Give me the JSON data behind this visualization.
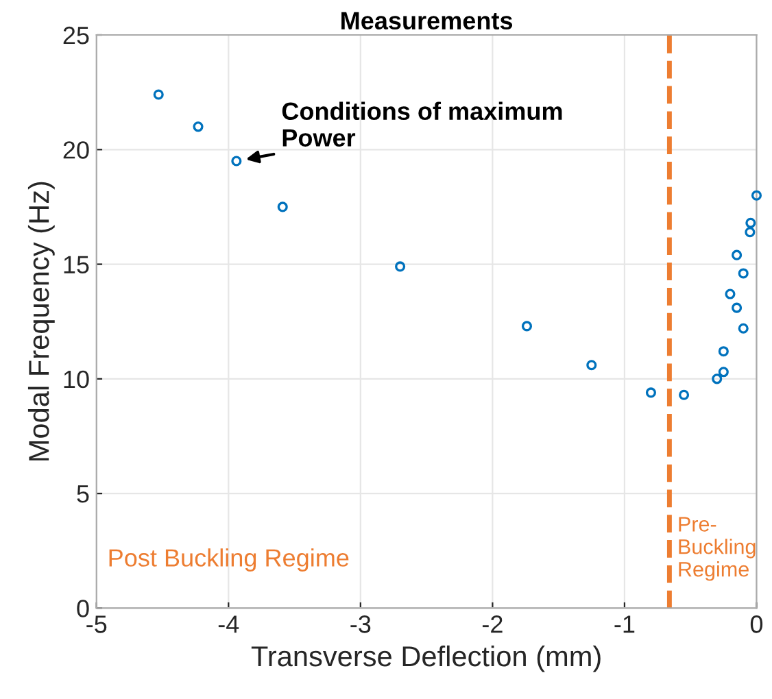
{
  "chart_data": {
    "type": "scatter",
    "title": "Measurements",
    "xlabel": "Transverse Deflection (mm)",
    "ylabel": "Modal Frequency (Hz)",
    "x": [
      -4.53,
      -4.23,
      -3.94,
      -3.59,
      -2.7,
      -1.74,
      -1.25,
      -0.8,
      -0.55,
      -0.3,
      -0.25,
      -0.25,
      -0.1,
      -0.15,
      -0.2,
      -0.1,
      -0.15,
      -0.05,
      -0.045,
      0.0
    ],
    "series": [
      {
        "color": "#0072bd",
        "values": [
          22.4,
          21.0,
          19.5,
          17.5,
          14.9,
          12.3,
          10.6,
          9.4,
          9.3,
          10.0,
          10.3,
          11.2,
          12.2,
          13.1,
          13.7,
          14.6,
          15.4,
          16.4,
          16.8,
          18.0
        ]
      }
    ],
    "xlim": [
      -5,
      0
    ],
    "xticks": [
      -5,
      -4,
      -3,
      -2,
      -1,
      0
    ],
    "ylim": [
      0,
      25
    ],
    "yticks": [
      0,
      5,
      10,
      15,
      20,
      25
    ],
    "grid": true,
    "marker": "circle",
    "ref_lines": [
      {
        "axis": "x",
        "value": -0.66,
        "color": "#ed7d31",
        "line_style": "dashed"
      }
    ],
    "annotations": [
      {
        "text": "Conditions of maximum\nPower",
        "x": -3.94,
        "y": 19.5
      },
      "Post Buckling Regime",
      "Pre-\nBuckling\nRegime"
    ]
  }
}
